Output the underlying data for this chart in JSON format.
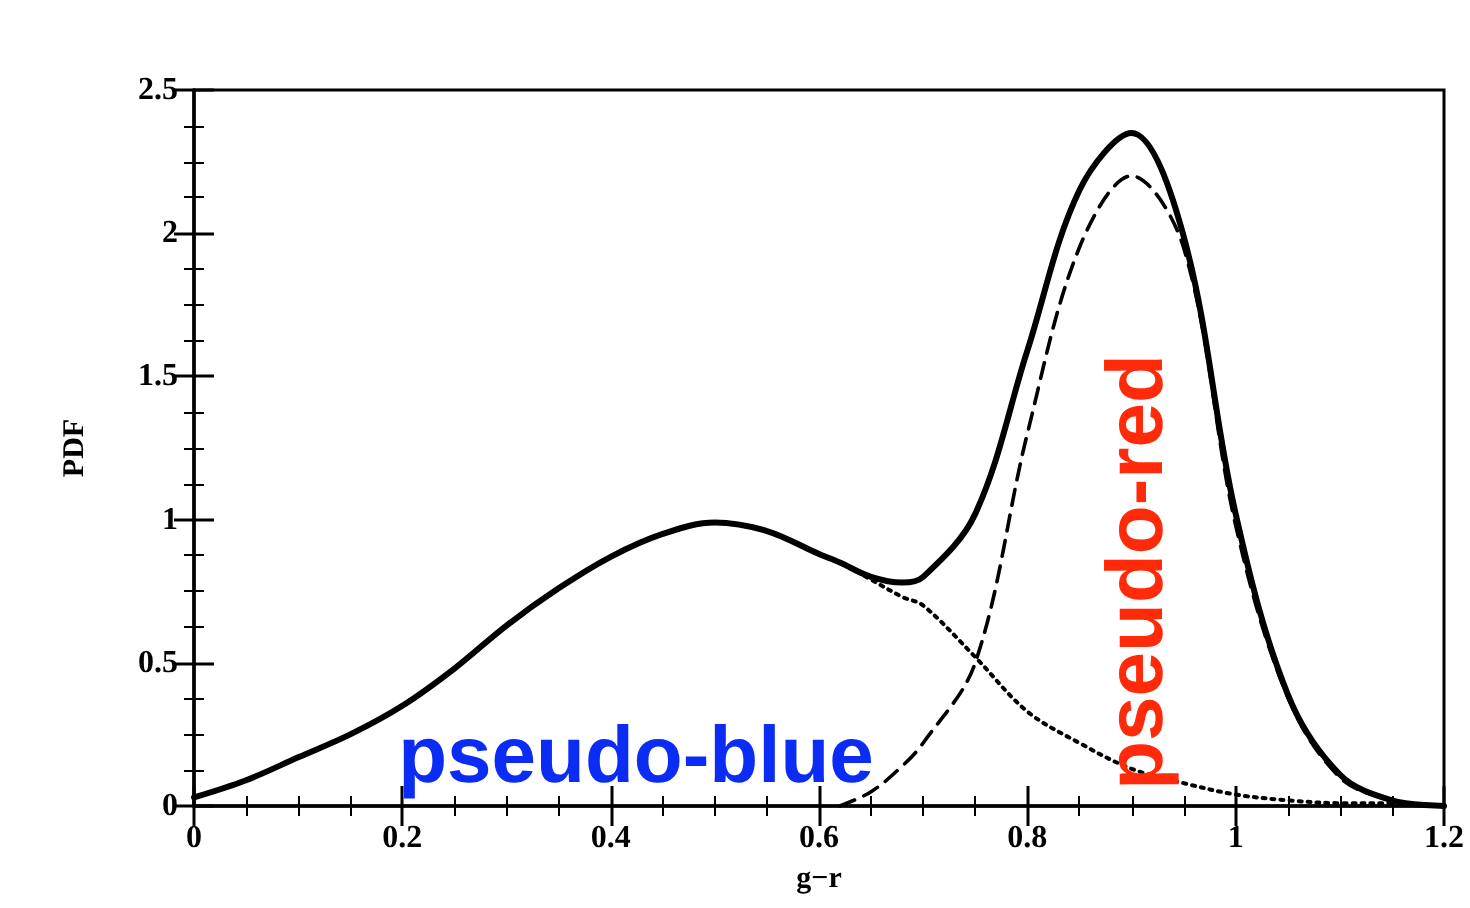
{
  "chart_data": {
    "type": "line",
    "xlabel": "g−r",
    "ylabel": "PDF",
    "x": [
      0,
      0.05,
      0.1,
      0.15,
      0.2,
      0.25,
      0.3,
      0.35,
      0.4,
      0.45,
      0.5,
      0.55,
      0.6,
      0.62,
      0.65,
      0.68,
      0.7,
      0.75,
      0.8,
      0.85,
      0.9,
      0.95,
      1.0,
      1.05,
      1.1,
      1.15,
      1.2
    ],
    "xlim": [
      0,
      1.2
    ],
    "xticks": [
      0,
      0.2,
      0.4,
      0.6,
      0.8,
      1,
      1.2
    ],
    "ylim": [
      0,
      2.5
    ],
    "yticks": [
      0,
      0.5,
      1,
      1.5,
      2,
      2.5
    ],
    "grid": false,
    "marker": "none",
    "series": [
      {
        "color": "#000000",
        "line_style": "solid",
        "values": [
          0.03,
          0.09,
          0.17,
          0.25,
          0.35,
          0.48,
          0.63,
          0.76,
          0.87,
          0.95,
          0.99,
          0.96,
          0.88,
          0.85,
          0.8,
          0.78,
          0.8,
          1.02,
          1.59,
          2.15,
          2.35,
          1.99,
          1.02,
          0.39,
          0.11,
          0.02,
          0
        ]
      },
      {
        "color": "#000000",
        "line_style": "dotted",
        "values": [
          0.03,
          0.09,
          0.17,
          0.25,
          0.35,
          0.48,
          0.63,
          0.76,
          0.87,
          0.95,
          0.99,
          0.96,
          0.88,
          0.85,
          0.79,
          0.73,
          0.7,
          0.52,
          0.33,
          0.22,
          0.13,
          0.08,
          0.04,
          0.02,
          0.01,
          0.01,
          0
        ]
      },
      {
        "color": "#000000",
        "line_style": "dashed",
        "values": [
          null,
          null,
          null,
          null,
          null,
          null,
          null,
          null,
          null,
          null,
          null,
          null,
          null,
          0,
          0.05,
          0.14,
          0.22,
          0.5,
          1.3,
          1.95,
          2.2,
          1.95,
          0.98,
          0.38,
          0.1,
          0.02,
          0
        ]
      }
    ],
    "annotations": [
      "pseudo-blue",
      "pseudo-red"
    ]
  }
}
